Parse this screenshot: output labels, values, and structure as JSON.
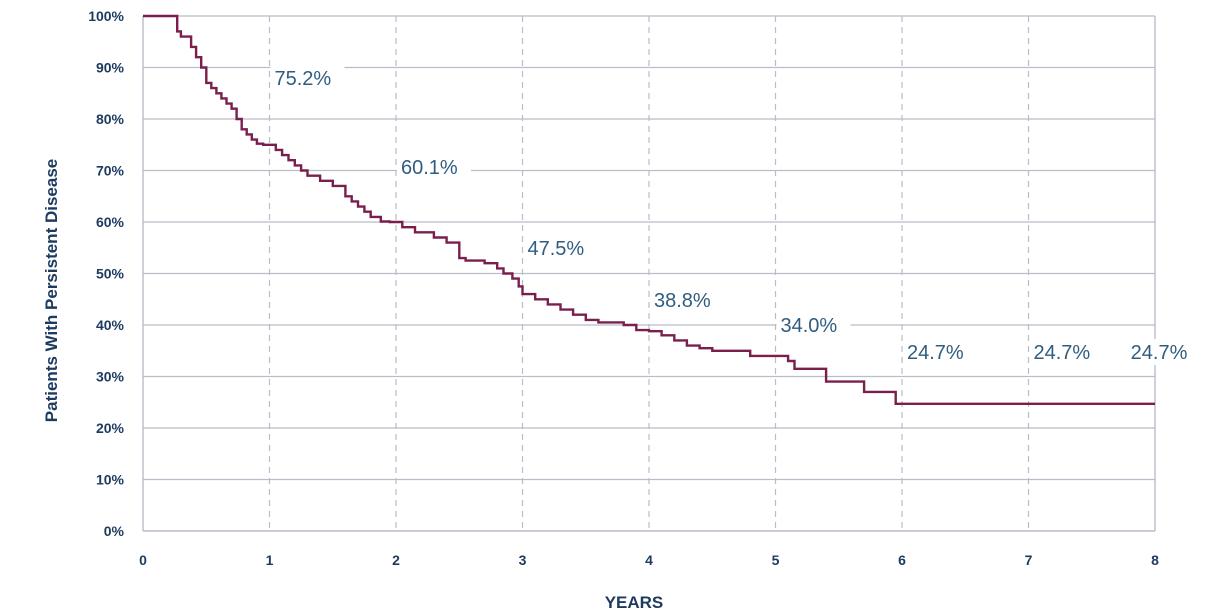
{
  "chart_data": {
    "type": "line",
    "xlabel": "YEARS",
    "ylabel": "Patients With Persistent Disease",
    "xlim": [
      0,
      8
    ],
    "ylim": [
      0,
      100
    ],
    "x_ticks": [
      "0",
      "1",
      "2",
      "3",
      "4",
      "5",
      "6",
      "7",
      "8"
    ],
    "y_ticks": [
      "0%",
      "10%",
      "20%",
      "30%",
      "40%",
      "50%",
      "60%",
      "70%",
      "80%",
      "90%",
      "100%"
    ],
    "grid": {
      "horizontal": "solid",
      "vertical": "dashed"
    },
    "colors": {
      "line": "#7a1f4d",
      "grid": "#b7bec8",
      "text": "#1d3a5f",
      "annotation": "#2f5d80"
    },
    "step_curve": {
      "x": [
        0,
        0.27,
        0.3,
        0.38,
        0.42,
        0.46,
        0.5,
        0.54,
        0.58,
        0.62,
        0.66,
        0.7,
        0.74,
        0.78,
        0.82,
        0.86,
        0.9,
        0.95,
        1.05,
        1.1,
        1.15,
        1.2,
        1.25,
        1.3,
        1.4,
        1.5,
        1.6,
        1.65,
        1.7,
        1.75,
        1.8,
        1.88,
        1.95,
        2.05,
        2.15,
        2.3,
        2.4,
        2.5,
        2.55,
        2.7,
        2.8,
        2.85,
        2.92,
        2.97,
        3.0,
        3.1,
        3.2,
        3.3,
        3.4,
        3.5,
        3.6,
        3.8,
        3.9,
        4.0,
        4.1,
        4.2,
        4.3,
        4.4,
        4.5,
        4.6,
        4.8,
        5.0,
        5.1,
        5.15,
        5.4,
        5.7,
        5.95,
        6.2,
        7.0,
        8.0
      ],
      "y": [
        100,
        97,
        96,
        94,
        92,
        90,
        87,
        86,
        85,
        84,
        83,
        82,
        80,
        78,
        77,
        76,
        75.2,
        75,
        74,
        73,
        72,
        71,
        70,
        69,
        68,
        67,
        65,
        64,
        63,
        62,
        61,
        60.1,
        60,
        59,
        58,
        57,
        56,
        53,
        52.5,
        52,
        51,
        50,
        49,
        47.5,
        46,
        45,
        44,
        43,
        42,
        41,
        40.5,
        40,
        39,
        38.8,
        38,
        37,
        36,
        35.5,
        35,
        35,
        34,
        34.0,
        33,
        31.5,
        29,
        27,
        24.7,
        24.7,
        24.7,
        24.7
      ]
    },
    "annotations": [
      {
        "x": 1,
        "label": "75.2%",
        "value": 75.2
      },
      {
        "x": 2,
        "label": "60.1%",
        "value": 60.1
      },
      {
        "x": 3,
        "label": "47.5%",
        "value": 47.5
      },
      {
        "x": 4,
        "label": "38.8%",
        "value": 38.8
      },
      {
        "x": 5,
        "label": "34.0%",
        "value": 34.0
      },
      {
        "x": 6,
        "label": "24.7%",
        "value": 24.7
      },
      {
        "x": 7,
        "label": "24.7%",
        "value": 24.7
      },
      {
        "x": 8,
        "label": "24.7%",
        "value": 24.7
      }
    ]
  }
}
